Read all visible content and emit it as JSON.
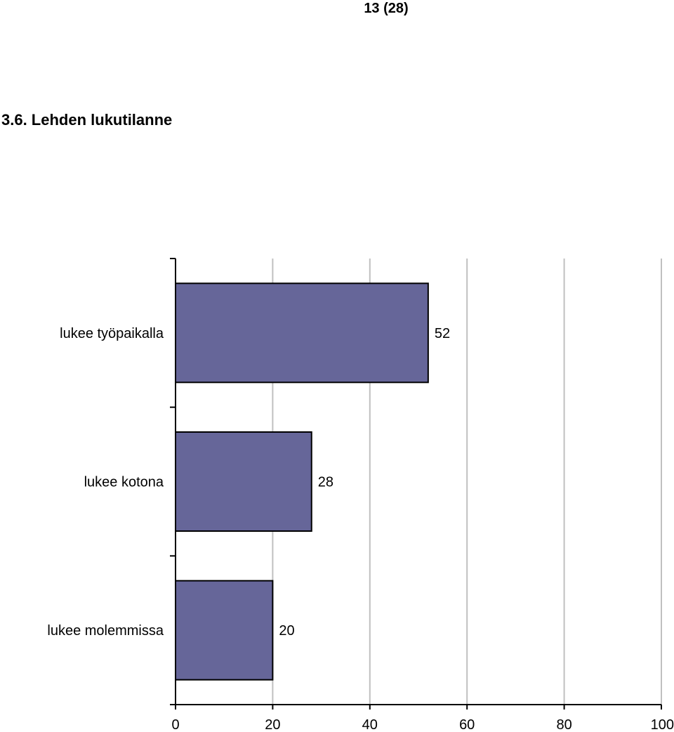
{
  "page": {
    "number": "13 (28)",
    "section_title": "3.6. Lehden lukutilanne"
  },
  "chart_data": {
    "type": "bar",
    "orientation": "horizontal",
    "categories": [
      "lukee työpaikalla",
      "lukee kotona",
      "lukee molemmissa"
    ],
    "values": [
      52,
      28,
      20
    ],
    "xlim": [
      0,
      100
    ],
    "ticks": [
      0,
      20,
      40,
      60,
      80,
      100
    ],
    "grid": true,
    "legend": "none",
    "bar_color": "#666699",
    "bar_edge_color": "#000000",
    "grid_color": "#c0c0c0"
  }
}
